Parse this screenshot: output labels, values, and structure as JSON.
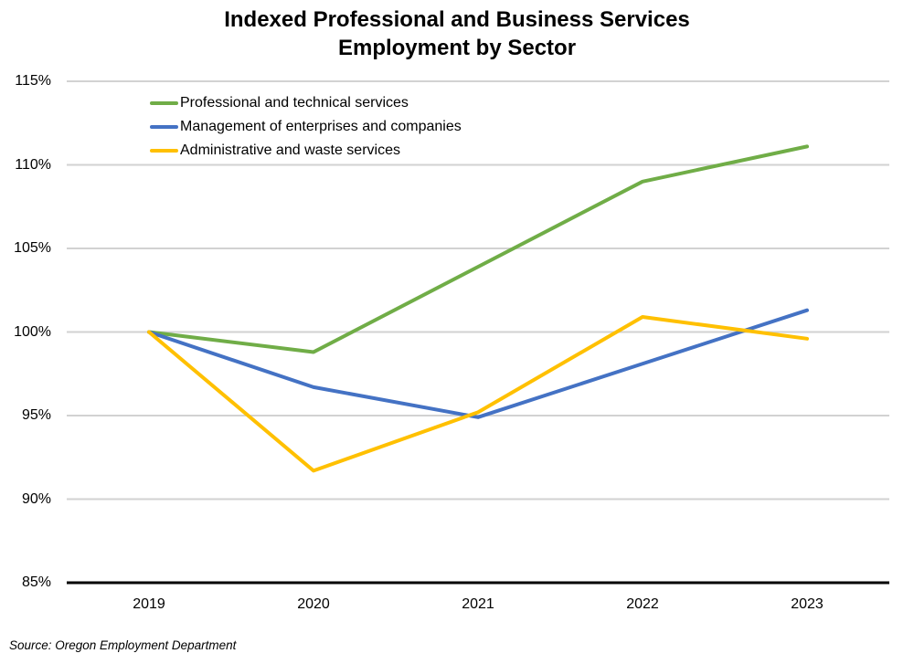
{
  "title": "Indexed Professional and Business Services\nEmployment by Sector",
  "source_note": "Source: Oregon Employment Department",
  "chart_data": {
    "type": "line",
    "title": "Indexed Professional and Business Services Employment by Sector",
    "categories": [
      "2019",
      "2020",
      "2021",
      "2022",
      "2023"
    ],
    "series": [
      {
        "name": "Professional and technical services",
        "color": "#70AD47",
        "values": [
          100,
          98.8,
          103.9,
          109.0,
          111.1
        ]
      },
      {
        "name": "Management of enterprises and companies",
        "color": "#4472C4",
        "values": [
          100,
          96.7,
          94.9,
          98.1,
          101.3
        ]
      },
      {
        "name": "Administrative and waste services",
        "color": "#FFC000",
        "values": [
          100,
          91.7,
          95.2,
          100.9,
          99.6
        ]
      }
    ],
    "ylim": [
      85,
      115
    ],
    "ytick_values": [
      115,
      110,
      105,
      100,
      95,
      90,
      85
    ],
    "ytick_labels": [
      "115%",
      "110%",
      "105%",
      "100%",
      "95%",
      "90%",
      "85%"
    ],
    "grid": true,
    "gridline_color": "#D2D2D2",
    "axis_line_color": "#000000",
    "legend_position": "top-left-inside"
  }
}
